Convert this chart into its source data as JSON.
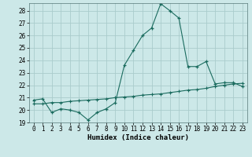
{
  "title": "",
  "xlabel": "Humidex (Indice chaleur)",
  "bg_color": "#cce8e8",
  "grid_color": "#aacccc",
  "line_color": "#1a6b5e",
  "xlim": [
    -0.5,
    23.5
  ],
  "ylim": [
    19,
    28.6
  ],
  "yticks": [
    19,
    20,
    21,
    22,
    23,
    24,
    25,
    26,
    27,
    28
  ],
  "xticks": [
    0,
    1,
    2,
    3,
    4,
    5,
    6,
    7,
    8,
    9,
    10,
    11,
    12,
    13,
    14,
    15,
    16,
    17,
    18,
    19,
    20,
    21,
    22,
    23
  ],
  "curve1_x": [
    0,
    1,
    2,
    3,
    4,
    5,
    6,
    7,
    8,
    9,
    10,
    11,
    12,
    13,
    14,
    15,
    16,
    17,
    18,
    19,
    20,
    21,
    22,
    23
  ],
  "curve1_y": [
    20.8,
    20.9,
    19.8,
    20.1,
    20.0,
    19.8,
    19.2,
    19.8,
    20.1,
    20.6,
    23.6,
    24.8,
    26.0,
    26.6,
    28.55,
    28.0,
    27.4,
    23.5,
    23.5,
    23.9,
    22.1,
    22.2,
    22.2,
    21.9
  ],
  "curve2_x": [
    0,
    1,
    2,
    3,
    4,
    5,
    6,
    7,
    8,
    9,
    10,
    11,
    12,
    13,
    14,
    15,
    16,
    17,
    18,
    19,
    20,
    21,
    22,
    23
  ],
  "curve2_y": [
    20.5,
    20.5,
    20.6,
    20.6,
    20.7,
    20.75,
    20.8,
    20.85,
    20.9,
    21.0,
    21.05,
    21.1,
    21.2,
    21.25,
    21.3,
    21.4,
    21.5,
    21.6,
    21.65,
    21.75,
    21.9,
    22.0,
    22.1,
    22.15
  ]
}
